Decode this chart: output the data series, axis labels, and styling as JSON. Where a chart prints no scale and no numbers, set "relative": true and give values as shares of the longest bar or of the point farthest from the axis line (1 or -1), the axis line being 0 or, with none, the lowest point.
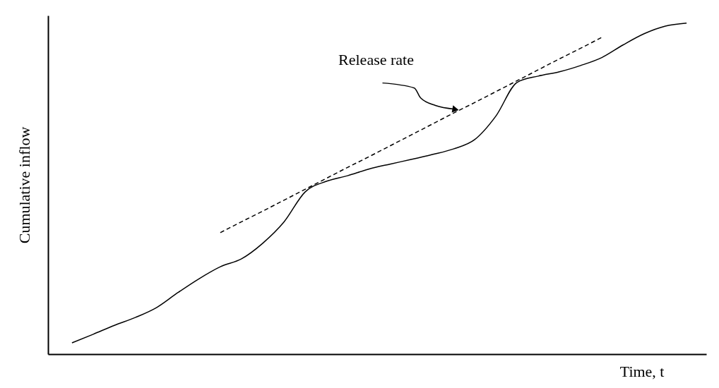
{
  "chart_data": {
    "type": "line",
    "relative": true,
    "xlabel": "Time, t",
    "ylabel": "Cumulative inflow",
    "categories": [
      null,
      null,
      null,
      null,
      null,
      null,
      null,
      null,
      null,
      null,
      null,
      null,
      null,
      null,
      null,
      null,
      null,
      null,
      null,
      null,
      null,
      null,
      null,
      null,
      null,
      null,
      null,
      null,
      null,
      null
    ],
    "series": [
      {
        "color": "#000000",
        "line_style": "solid",
        "values": [
          0.034,
          0.06,
          0.087,
          0.111,
          0.141,
          0.186,
          0.228,
          0.264,
          0.288,
          0.335,
          0.399,
          0.49,
          0.522,
          0.539,
          0.559,
          0.574,
          0.588,
          0.603,
          0.62,
          0.648,
          0.719,
          0.821,
          0.84,
          0.853,
          0.872,
          0.896,
          0.934,
          0.968,
          0.991,
          1.0
        ]
      },
      {
        "color": "#000000",
        "line_style": "dashed",
        "values": [
          null,
          null,
          null,
          null,
          null,
          null,
          null,
          0.367,
          0.4,
          0.432,
          0.465,
          0.498,
          0.531,
          0.564,
          0.596,
          0.629,
          0.662,
          0.695,
          0.728,
          0.76,
          0.793,
          0.826,
          0.859,
          0.892,
          0.924,
          0.957,
          null,
          null,
          null,
          null
        ]
      }
    ],
    "annotations": [
      "Release rate"
    ],
    "marker": "none"
  }
}
